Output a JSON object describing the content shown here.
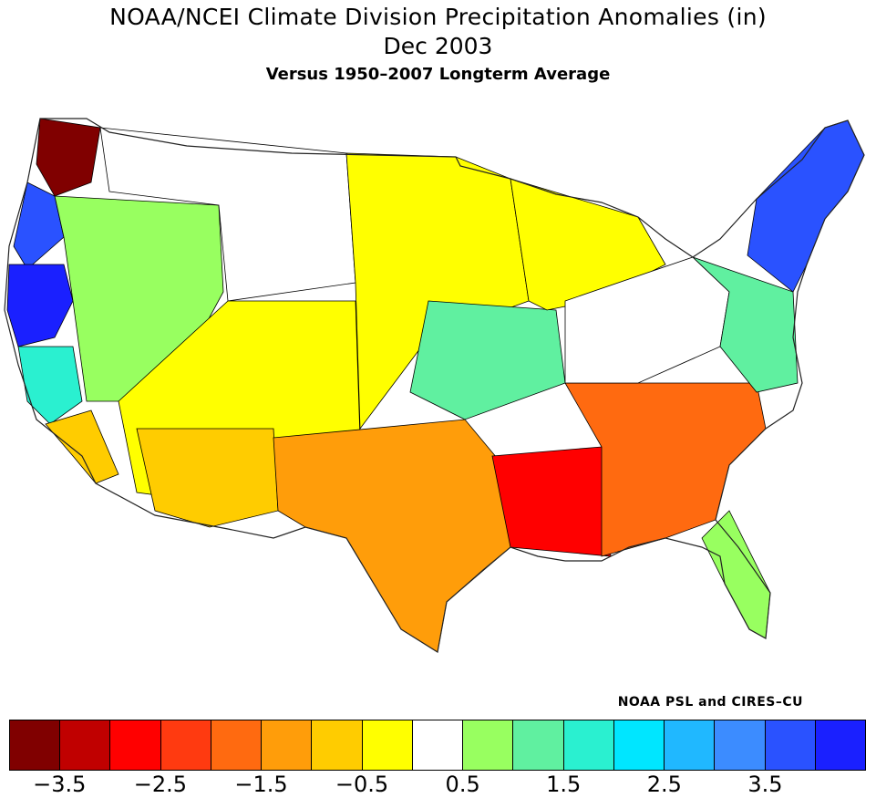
{
  "title": {
    "line1": "NOAA/NCEI Climate Division Precipitation Anomalies (in)",
    "line2": "Dec 2003",
    "line3": "Versus 1950–2007 Longterm Average"
  },
  "credit": "NOAA PSL and CIRES–CU",
  "colors": {
    "border": "#000000",
    "outline_stroke": "#222222"
  },
  "legend": {
    "swatches": [
      "#800000",
      "#c00000",
      "#ff0000",
      "#ff3a10",
      "#ff6a10",
      "#ff9d0a",
      "#ffcc00",
      "#ffff00",
      "#ffffff",
      "#98ff60",
      "#60f0a0",
      "#2af0d0",
      "#00e6ff",
      "#20b8ff",
      "#3c8cff",
      "#2a52ff",
      "#1a20ff"
    ],
    "tick_labels": [
      "−3.5",
      "−2.5",
      "−1.5",
      "−0.5",
      "0.5",
      "1.5",
      "2.5",
      "3.5"
    ]
  },
  "map_regions": [
    {
      "name": "nw-washington",
      "color": "#800000"
    },
    {
      "name": "pacific-northwest-coast",
      "color": "#2a52ff"
    },
    {
      "name": "north-california",
      "color": "#1a20ff"
    },
    {
      "name": "central-california",
      "color": "#2af0d0"
    },
    {
      "name": "southern-california",
      "color": "#ffcc00"
    },
    {
      "name": "great-basin",
      "color": "#98ff60"
    },
    {
      "name": "northern-rockies",
      "color": "#ffffff"
    },
    {
      "name": "southwest",
      "color": "#ffff00"
    },
    {
      "name": "arizona-southern-nm",
      "color": "#ffcc00"
    },
    {
      "name": "great-plains",
      "color": "#ffff00"
    },
    {
      "name": "central-plains",
      "color": "#60f0a0"
    },
    {
      "name": "texas",
      "color": "#ff9d0a"
    },
    {
      "name": "lower-mississippi",
      "color": "#ff0000"
    },
    {
      "name": "southeast",
      "color": "#ff6a10"
    },
    {
      "name": "florida",
      "color": "#98ff60"
    },
    {
      "name": "great-lakes",
      "color": "#ffff00"
    },
    {
      "name": "ohio-valley",
      "color": "#ffffff"
    },
    {
      "name": "mid-atlantic",
      "color": "#60f0a0"
    },
    {
      "name": "new-england",
      "color": "#2a52ff"
    }
  ]
}
